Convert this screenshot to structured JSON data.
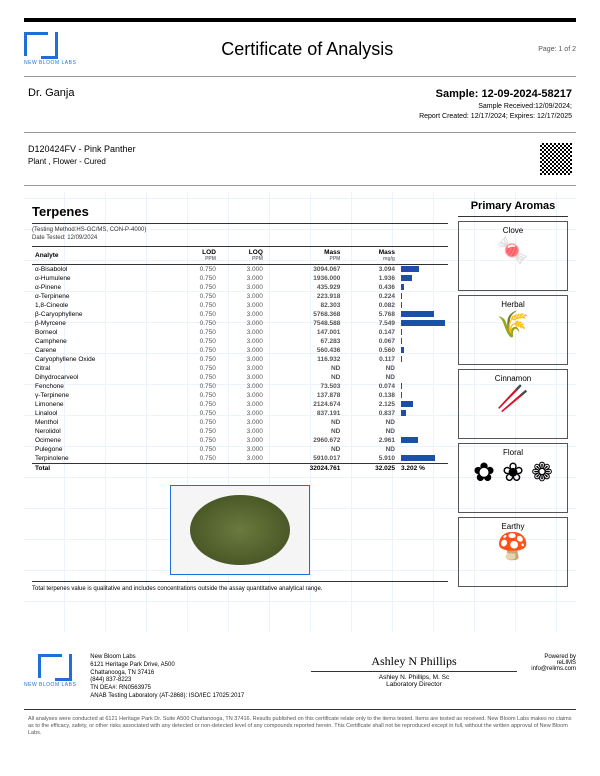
{
  "lab": {
    "name": "NEW BLOOM LABS"
  },
  "header": {
    "title": "Certificate of Analysis",
    "pageLabel": "Page: 1 of 2"
  },
  "client": "Dr. Ganja",
  "sample": {
    "idLabel": "Sample: 12-09-2024-58217",
    "received": "Sample Received:12/09/2024;",
    "created": "Report Created: 12/17/2024; Expires: 12/17/2025"
  },
  "product": {
    "code": "D120424FV - Pink Panther",
    "type": "Plant , Flower - Cured"
  },
  "section": {
    "title": "Terpenes",
    "method": "(Testing Method:HS-GC/MS, CON-P-4000)",
    "dateTested": "Date Tested: 12/09/2024"
  },
  "columns": {
    "analyte": "Analyte",
    "lod": "LOD",
    "loq": "LOQ",
    "massPpm": "Mass",
    "massMg": "Mass",
    "unitPpm": "PPM",
    "unitMg": "mg/g"
  },
  "rows": [
    {
      "name": "α-Bisabolol",
      "lod": "0.750",
      "loq": "3.000",
      "ppm": "3094.067",
      "mg": "3.094",
      "bar": 41
    },
    {
      "name": "α-Humulene",
      "lod": "0.750",
      "loq": "3.000",
      "ppm": "1936.000",
      "mg": "1.936",
      "bar": 26
    },
    {
      "name": "α-Pinene",
      "lod": "0.750",
      "loq": "3.000",
      "ppm": "435.929",
      "mg": "0.436",
      "bar": 6
    },
    {
      "name": "α-Terpinene",
      "lod": "0.750",
      "loq": "3.000",
      "ppm": "223.918",
      "mg": "0.224",
      "bar": 3
    },
    {
      "name": "1,8-Cineole",
      "lod": "0.750",
      "loq": "3.000",
      "ppm": "82.303",
      "mg": "0.082",
      "bar": 1
    },
    {
      "name": "β-Caryophyllene",
      "lod": "0.750",
      "loq": "3.000",
      "ppm": "5768.368",
      "mg": "5.768",
      "bar": 76
    },
    {
      "name": "β-Myrcene",
      "lod": "0.750",
      "loq": "3.000",
      "ppm": "7548.588",
      "mg": "7.549",
      "bar": 100
    },
    {
      "name": "Borneol",
      "lod": "0.750",
      "loq": "3.000",
      "ppm": "147.001",
      "mg": "0.147",
      "bar": 2
    },
    {
      "name": "Camphene",
      "lod": "0.750",
      "loq": "3.000",
      "ppm": "67.283",
      "mg": "0.067",
      "bar": 1
    },
    {
      "name": "Carene",
      "lod": "0.750",
      "loq": "3.000",
      "ppm": "560.436",
      "mg": "0.560",
      "bar": 7
    },
    {
      "name": "Caryophyllene Oxide",
      "lod": "0.750",
      "loq": "3.000",
      "ppm": "116.932",
      "mg": "0.117",
      "bar": 2
    },
    {
      "name": "Citral",
      "lod": "0.750",
      "loq": "3.000",
      "ppm": "ND",
      "mg": "ND",
      "bar": 0
    },
    {
      "name": "Dihydrocarveol",
      "lod": "0.750",
      "loq": "3.000",
      "ppm": "ND",
      "mg": "ND",
      "bar": 0
    },
    {
      "name": "Fenchone",
      "lod": "0.750",
      "loq": "3.000",
      "ppm": "73.503",
      "mg": "0.074",
      "bar": 1
    },
    {
      "name": "γ-Terpinene",
      "lod": "0.750",
      "loq": "3.000",
      "ppm": "137.878",
      "mg": "0.138",
      "bar": 2
    },
    {
      "name": "Limonene",
      "lod": "0.750",
      "loq": "3.000",
      "ppm": "2124.674",
      "mg": "2.125",
      "bar": 28
    },
    {
      "name": "Linalool",
      "lod": "0.750",
      "loq": "3.000",
      "ppm": "837.191",
      "mg": "0.837",
      "bar": 11
    },
    {
      "name": "Menthol",
      "lod": "0.750",
      "loq": "3.000",
      "ppm": "ND",
      "mg": "ND",
      "bar": 0
    },
    {
      "name": "Nerolidol",
      "lod": "0.750",
      "loq": "3.000",
      "ppm": "ND",
      "mg": "ND",
      "bar": 0
    },
    {
      "name": "Ocimene",
      "lod": "0.750",
      "loq": "3.000",
      "ppm": "2960.672",
      "mg": "2.961",
      "bar": 39
    },
    {
      "name": "Pulegone",
      "lod": "0.750",
      "loq": "3.000",
      "ppm": "ND",
      "mg": "ND",
      "bar": 0
    },
    {
      "name": "Terpinolene",
      "lod": "0.750",
      "loq": "3.000",
      "ppm": "5910.017",
      "mg": "5.910",
      "bar": 78
    }
  ],
  "total": {
    "label": "Total",
    "ppm": "32024.761",
    "mg": "32.025",
    "pct": "3.202 %"
  },
  "footnote": "Total terpenes value is qualitative and includes concentrations outside the assay quantitative analytical range.",
  "aromas": {
    "title": "Primary Aromas",
    "items": [
      {
        "name": "Clove",
        "glyph": "🍬"
      },
      {
        "name": "Herbal",
        "glyph": "🌾"
      },
      {
        "name": "Cinnamon",
        "glyph": "🥢"
      },
      {
        "name": "Floral",
        "glyph": "✿ ❀ ❁"
      },
      {
        "name": "Earthy",
        "glyph": "🍄"
      }
    ]
  },
  "footer": {
    "addrName": "New Bloom Labs",
    "addr1": "6121 Heritage Park Drive, A500",
    "addr2": "Chattanooga, TN 37416",
    "phone": "(844) 837-8223",
    "dea": "TN DEA#: RN0563975",
    "anab": "ANAB Testing Laboratory (AT-2868): ISO/IEC 17025:2017",
    "sigName": "Ashley N. Phillips, M. Sc",
    "sigTitle": "Laboratory Director",
    "powered": "Powered by",
    "relims": "reLIMS",
    "relurl": "info@relims.com"
  },
  "disclaimer": "All analyses were conducted at 6121 Heritage Park Dr. Suite A500 Chattanooga, TN 37416. Results published on this certificate relate only to the items tested. Items are tested as received. New Bloom Labs makes no claims as to the efficacy, safety, or other risks associated with any detected or non-detected level of any compounds reported herein. This Certificate shall not be reproduced except in full, without the written approval of New Bloom Labs.",
  "colors": {
    "brand": "#1e6fd9",
    "bar": "#1e4fa8"
  }
}
